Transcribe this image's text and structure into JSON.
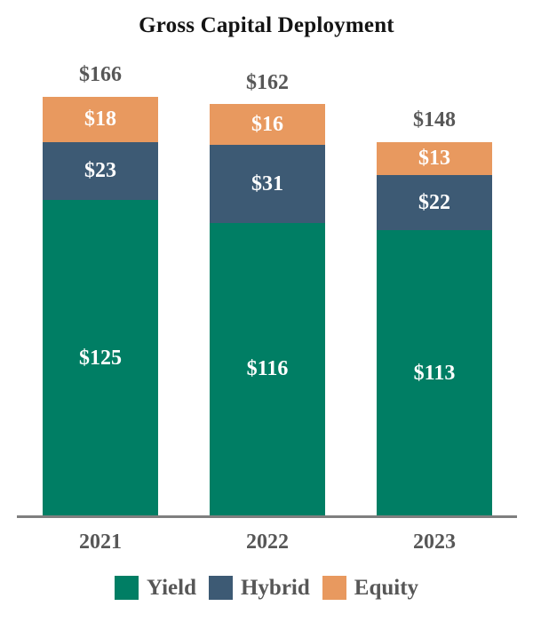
{
  "chart_data": {
    "type": "bar",
    "stacked": true,
    "title": "Gross Capital Deployment",
    "categories": [
      "2021",
      "2022",
      "2023"
    ],
    "series": [
      {
        "name": "Yield",
        "color": "#007E64",
        "values": [
          125,
          116,
          113
        ],
        "labels": [
          "$125",
          "$116",
          "$113"
        ]
      },
      {
        "name": "Hybrid",
        "color": "#3D5A74",
        "values": [
          23,
          31,
          22
        ],
        "labels": [
          "$23",
          "$31",
          "$22"
        ]
      },
      {
        "name": "Equity",
        "color": "#E8995F",
        "values": [
          18,
          16,
          13
        ],
        "labels": [
          "$18",
          "$16",
          "$13"
        ]
      }
    ],
    "totals": [
      166,
      162,
      148
    ],
    "total_labels": [
      "$166",
      "$162",
      "$148"
    ],
    "legend_position": "bottom",
    "grid": false,
    "y_axis_visible": false
  },
  "colors": {
    "title_text": "#141414",
    "gray_label_text": "#575757",
    "segment_label_text": "#FFFFFF",
    "axis_line": "#7F7F7F"
  }
}
